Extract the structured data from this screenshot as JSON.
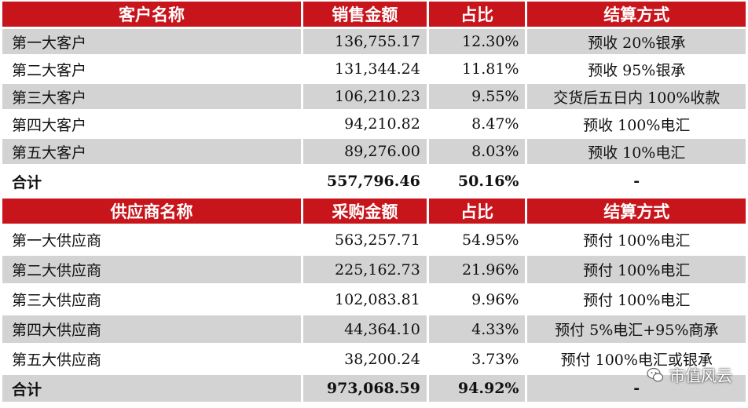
{
  "customers": {
    "headers": [
      "客户名称",
      "销售金额",
      "占比",
      "结算方式"
    ],
    "rows": [
      {
        "name": "第一大客户",
        "amount": "136,755.17",
        "pct": "12.30%",
        "method": "预收 20%银承"
      },
      {
        "name": "第二大客户",
        "amount": "131,344.24",
        "pct": "11.81%",
        "method": "预收 95%银承"
      },
      {
        "name": "第三大客户",
        "amount": "106,210.23",
        "pct": "9.55%",
        "method": "交货后五日内 100%收款"
      },
      {
        "name": "第四大客户",
        "amount": "94,210.82",
        "pct": "8.47%",
        "method": "预收 100%电汇"
      },
      {
        "name": "第五大客户",
        "amount": "89,276.00",
        "pct": "8.03%",
        "method": "预收 10%电汇"
      }
    ],
    "total": {
      "name": "合计",
      "amount": "557,796.46",
      "pct": "50.16%",
      "method": "-"
    }
  },
  "suppliers": {
    "headers": [
      "供应商名称",
      "采购金额",
      "占比",
      "结算方式"
    ],
    "rows": [
      {
        "name": "第一大供应商",
        "amount": "563,257.71",
        "pct": "54.95%",
        "method": "预付 100%电汇"
      },
      {
        "name": "第二大供应商",
        "amount": "225,162.73",
        "pct": "21.96%",
        "method": "预付 100%电汇"
      },
      {
        "name": "第三大供应商",
        "amount": "102,083.81",
        "pct": "9.96%",
        "method": "预付 100%电汇"
      },
      {
        "name": "第四大供应商",
        "amount": "44,364.10",
        "pct": "4.33%",
        "method": "预付 5%电汇+95%商承"
      },
      {
        "name": "第五大供应商",
        "amount": "38,200.24",
        "pct": "3.73%",
        "method": "预付 100%电汇或银承"
      }
    ],
    "total": {
      "name": "合计",
      "amount": "973,068.59",
      "pct": "94.92%",
      "method": "-"
    }
  },
  "watermark": {
    "text": "市值风云",
    "icon": "wechat-icon"
  }
}
